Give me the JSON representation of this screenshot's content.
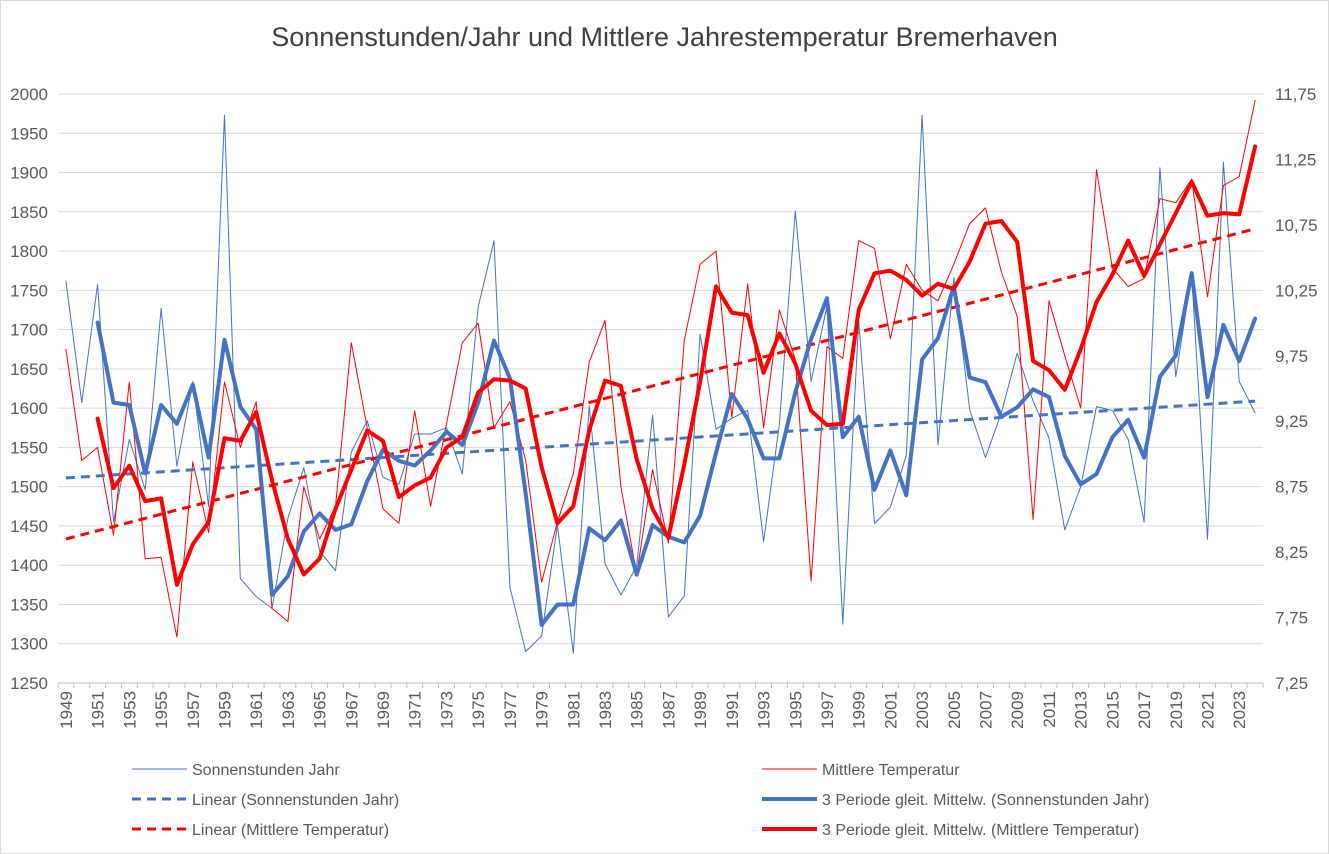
{
  "chart_data": {
    "type": "line",
    "title": "Sonnenstunden/Jahr  und Mittlere Jahrestemperatur  Bremerhaven",
    "x": [
      1949,
      1950,
      1951,
      1952,
      1953,
      1954,
      1955,
      1956,
      1957,
      1958,
      1959,
      1960,
      1961,
      1962,
      1963,
      1964,
      1965,
      1966,
      1967,
      1968,
      1969,
      1970,
      1971,
      1972,
      1973,
      1974,
      1975,
      1976,
      1977,
      1978,
      1979,
      1980,
      1981,
      1982,
      1983,
      1984,
      1985,
      1986,
      1987,
      1988,
      1989,
      1990,
      1991,
      1992,
      1993,
      1994,
      1995,
      1996,
      1997,
      1998,
      1999,
      2000,
      2001,
      2002,
      2003,
      2004,
      2005,
      2006,
      2007,
      2008,
      2009,
      2010,
      2011,
      2012,
      2013,
      2014,
      2015,
      2016,
      2017,
      2018,
      2019,
      2020,
      2021,
      2022,
      2023,
      2024
    ],
    "x_tick_labels": [
      "1949",
      "1951",
      "1953",
      "1955",
      "1957",
      "1959",
      "1961",
      "1963",
      "1965",
      "1967",
      "1969",
      "1971",
      "1973",
      "1975",
      "1977",
      "1979",
      "1981",
      "1983",
      "1985",
      "1987",
      "1989",
      "1991",
      "1993",
      "1995",
      "1997",
      "1999",
      "2001",
      "2003",
      "2005",
      "2007",
      "2009",
      "2011",
      "2013",
      "2015",
      "2017",
      "2019",
      "2021",
      "2023"
    ],
    "y_left": {
      "min": 1250,
      "max": 2000,
      "step": 50,
      "tick_labels": [
        "1250",
        "1300",
        "1350",
        "1400",
        "1450",
        "1500",
        "1550",
        "1600",
        "1650",
        "1700",
        "1750",
        "1800",
        "1850",
        "1900",
        "1950",
        "2000"
      ]
    },
    "y_right": {
      "min": 7.25,
      "max": 11.75,
      "step": 0.5,
      "tick_labels": [
        "7,25",
        "7,75",
        "8,25",
        "8,75",
        "9,25",
        "9,75",
        "10,25",
        "10,75",
        "11,25",
        "11,75"
      ]
    },
    "gridlines": true,
    "series": [
      {
        "name": "Sonnenstunden Jahr",
        "axis": "left",
        "color": "#4472C4",
        "style": "thin",
        "values": [
          1762,
          1607,
          1758,
          1455,
          1560,
          1496,
          1727,
          1526,
          1634,
          1475,
          1973,
          1383,
          1360,
          1345,
          1460,
          1524,
          1418,
          1393,
          1544,
          1584,
          1512,
          1503,
          1567,
          1567,
          1575,
          1516,
          1729,
          1813,
          1372,
          1290,
          1310,
          1451,
          1288,
          1603,
          1402,
          1362,
          1399,
          1591,
          1334,
          1361,
          1694,
          1573,
          1587,
          1597,
          1430,
          1580,
          1851,
          1634,
          1730,
          1325,
          1711,
          1453,
          1474,
          1540,
          1973,
          1553,
          1766,
          1598,
          1537,
          1594,
          1670,
          1609,
          1562,
          1445,
          1500,
          1602,
          1597,
          1560,
          1455,
          1906,
          1640,
          1770,
          1433,
          1913,
          1634,
          1594
        ]
      },
      {
        "name": "Mittlere Temperatur",
        "axis": "right",
        "color": "#FF0000",
        "style": "thin",
        "values": [
          9.8,
          8.95,
          9.05,
          8.38,
          9.55,
          8.2,
          8.21,
          7.6,
          8.94,
          8.4,
          9.55,
          9.05,
          9.4,
          7.82,
          7.72,
          8.75,
          8.35,
          8.6,
          9.85,
          9.2,
          8.58,
          8.47,
          9.33,
          8.6,
          9.23,
          9.85,
          10,
          9.2,
          9.4,
          8.95,
          8.02,
          8.48,
          8.85,
          9.7,
          10.02,
          8.75,
          8.08,
          8.88,
          8.32,
          9.87,
          10.45,
          10.55,
          9.28,
          10.3,
          9.2,
          10.1,
          9.72,
          8.03,
          9.82,
          9.73,
          10.63,
          10.57,
          9.88,
          10.45,
          10.25,
          10.17,
          10.45,
          10.76,
          10.88,
          10.39,
          10.05,
          8.5,
          10.17,
          9.75,
          9.35,
          11.17,
          10.42,
          10.28,
          10.34,
          10.95,
          10.92,
          11.1,
          10.2,
          11.05,
          11.12,
          11.7
        ]
      },
      {
        "name": "Linear (Sonnenstunden Jahr)",
        "axis": "left",
        "color": "#4472C4",
        "style": "dashed",
        "x": [
          1949,
          2024
        ],
        "values": [
          1511,
          1609
        ]
      },
      {
        "name": "3 Periode gleit. Mittelw. (Sonnenstunden Jahr)",
        "axis": "left",
        "color": "#4472C4",
        "style": "thick",
        "values": [
          null,
          null,
          1709,
          1607,
          1604,
          1517,
          1604,
          1580,
          1630,
          1537,
          1687,
          1602,
          1573,
          1362,
          1386,
          1443,
          1466,
          1445,
          1452,
          1507,
          1547,
          1533,
          1527,
          1546,
          1570,
          1553,
          1607,
          1686,
          1638,
          1491,
          1324,
          1350,
          1350,
          1447,
          1432,
          1457,
          1388,
          1451,
          1436,
          1429,
          1463,
          1543,
          1618,
          1586,
          1536,
          1536,
          1620,
          1688,
          1740,
          1563,
          1589,
          1496,
          1546,
          1489,
          1662,
          1689,
          1755,
          1639,
          1633,
          1589,
          1601,
          1624,
          1614,
          1539,
          1503,
          1516,
          1563,
          1585,
          1537,
          1640,
          1667,
          1772,
          1614,
          1706,
          1660,
          1714
        ]
      },
      {
        "name": "Linear (Mittlere Temperatur)",
        "axis": "right",
        "color": "#FF0000",
        "style": "dashed",
        "x": [
          1949,
          2024
        ],
        "values": [
          8.35,
          10.72
        ]
      },
      {
        "name": "3 Periode gleit. Mittelw. (Mittlere Temperatur)",
        "axis": "right",
        "color": "#FF0000",
        "style": "thick",
        "values": [
          null,
          null,
          9.27,
          8.74,
          8.91,
          8.64,
          8.66,
          8.0,
          8.31,
          8.48,
          9.12,
          9.1,
          9.32,
          8.8,
          8.35,
          8.08,
          8.2,
          8.58,
          8.88,
          9.18,
          9.1,
          8.67,
          8.76,
          8.82,
          9.05,
          9.13,
          9.47,
          9.57,
          9.56,
          9.5,
          8.9,
          8.47,
          8.6,
          9.18,
          9.56,
          9.52,
          8.96,
          8.58,
          8.36,
          8.92,
          9.55,
          10.28,
          10.08,
          10.06,
          9.62,
          9.92,
          9.69,
          9.33,
          9.22,
          9.23,
          10.1,
          10.38,
          10.4,
          10.33,
          10.21,
          10.3,
          10.26,
          10.47,
          10.76,
          10.78,
          10.62,
          9.71,
          9.64,
          9.49,
          9.8,
          10.16,
          10.37,
          10.63,
          10.36,
          10.6,
          10.84,
          11.08,
          10.82,
          10.84,
          10.83,
          11.35
        ]
      }
    ],
    "legend": {
      "placement": "bottom",
      "entries": [
        "Sonnenstunden Jahr",
        "Mittlere Temperatur",
        "Linear (Sonnenstunden Jahr)",
        "3 Periode gleit. Mittelw. (Sonnenstunden Jahr)",
        "Linear (Mittlere Temperatur)",
        "3 Periode gleit. Mittelw. (Mittlere Temperatur)"
      ]
    }
  }
}
